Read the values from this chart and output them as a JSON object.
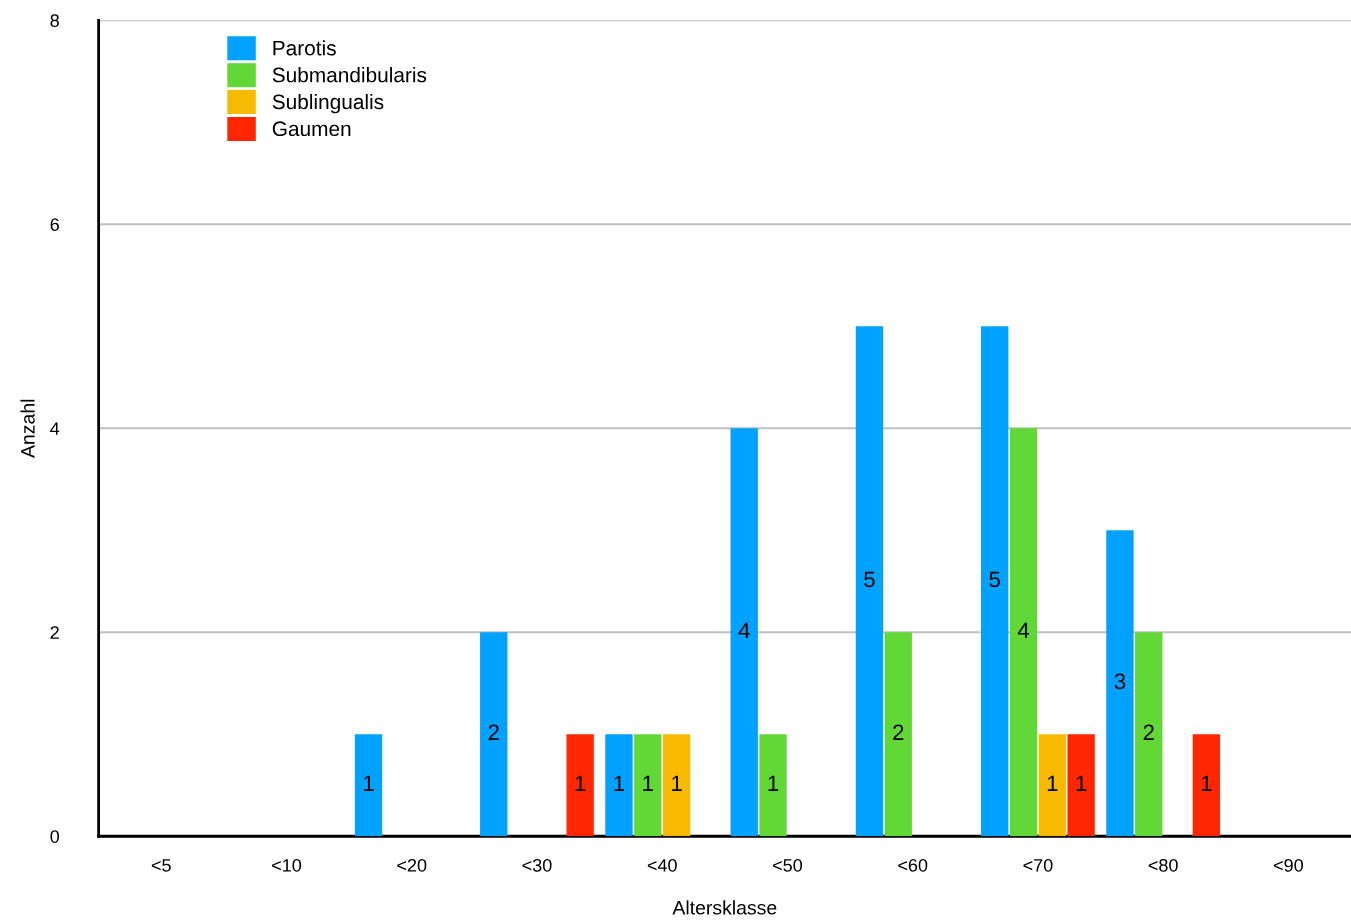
{
  "chart_data": {
    "type": "bar",
    "xlabel": "Altersklasse",
    "ylabel": "Anzahl",
    "categories": [
      "<5",
      "<10",
      "<20",
      "<30",
      "<40",
      "<50",
      "<60",
      "<70",
      "<80",
      "<90"
    ],
    "series": [
      {
        "name": "Parotis",
        "color": "#00a2ff",
        "values": [
          null,
          null,
          1,
          2,
          1,
          4,
          5,
          5,
          3,
          null
        ]
      },
      {
        "name": "Submandibularis",
        "color": "#61d836",
        "values": [
          null,
          null,
          null,
          null,
          1,
          1,
          2,
          4,
          2,
          null
        ]
      },
      {
        "name": "Sublingualis",
        "color": "#f8ba00",
        "values": [
          null,
          null,
          null,
          null,
          1,
          null,
          null,
          1,
          null,
          null
        ]
      },
      {
        "name": "Gaumen",
        "color": "#ff2600",
        "values": [
          null,
          null,
          null,
          1,
          null,
          null,
          null,
          1,
          1,
          null
        ]
      }
    ],
    "ylim": [
      0,
      8
    ],
    "yticks": [
      0,
      2,
      4,
      6,
      8
    ],
    "grid": "y",
    "legend": "top left",
    "data_labels": true
  }
}
